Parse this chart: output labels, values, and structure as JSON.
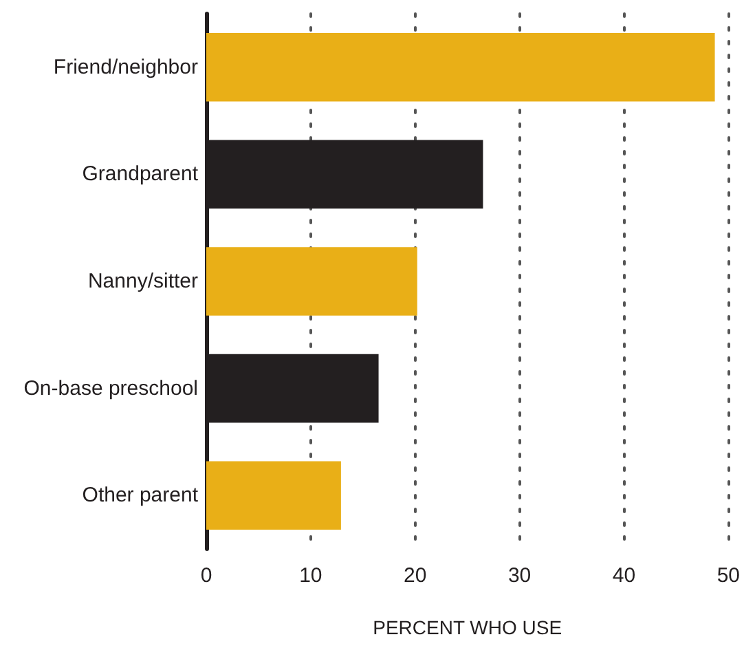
{
  "chart_data": {
    "type": "bar",
    "orientation": "horizontal",
    "xlabel": "PERCENT WHO USE",
    "categories": [
      "Friend/neighbor",
      "Grandparent",
      "Nanny/sitter",
      "On-base preschool",
      "Other parent"
    ],
    "values": [
      48.7,
      26.5,
      20.2,
      16.5,
      12.9
    ],
    "colors": [
      "#e9af17",
      "#231f20",
      "#e9af17",
      "#231f20",
      "#e9af17"
    ],
    "xlim": [
      0,
      50
    ],
    "xticks": [
      0,
      10,
      20,
      30,
      40,
      50
    ],
    "grid": "x"
  }
}
